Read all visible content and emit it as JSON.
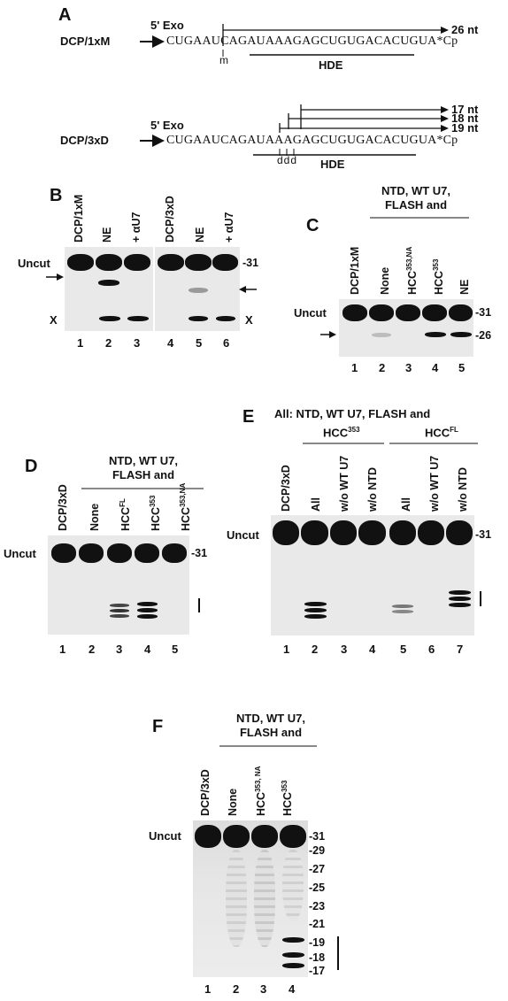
{
  "panels": {
    "A": {
      "label": "A",
      "rows": [
        {
          "name": "DCP/1xM",
          "exo": "5' Exo",
          "sequence": "CUGAAUCAGAUAAAGAGCUGUGACACUGUA*Cp",
          "mark": "m",
          "hde": "HDE",
          "products": [
            "26 nt"
          ]
        },
        {
          "name": "DCP/3xD",
          "exo": "5' Exo",
          "sequence": "CUGAAUCAGAUAAAGAGCUGUGACACUGUA*Cp",
          "mark": "ddd",
          "hde": "HDE",
          "products": [
            "17 nt",
            "18 nt",
            "19 nt"
          ]
        }
      ]
    },
    "B": {
      "label": "B",
      "lanes": [
        "DCP/1xM",
        "NE",
        "+ αU7",
        "DCP/3xD",
        "NE",
        "+ αU7"
      ],
      "lane_numbers": [
        "1",
        "2",
        "3",
        "4",
        "5",
        "6"
      ],
      "uncut": "Uncut",
      "marker": "-31",
      "x_label": "X"
    },
    "C": {
      "label": "C",
      "header": [
        "NTD, WT U7,",
        "FLASH and"
      ],
      "lanes": [
        "DCP/1xM",
        "None",
        "HCC",
        "HCC",
        "NE"
      ],
      "lane_sups": [
        "",
        "",
        "353,NA",
        "353",
        ""
      ],
      "lane_numbers": [
        "1",
        "2",
        "3",
        "4",
        "5"
      ],
      "uncut": "Uncut",
      "markers": [
        "-31",
        "-26"
      ]
    },
    "D": {
      "label": "D",
      "header": [
        "NTD, WT U7,",
        "FLASH and"
      ],
      "lanes": [
        "DCP/3xD",
        "None",
        "HCC",
        "HCC",
        "HCC"
      ],
      "lane_sups": [
        "",
        "",
        "FL",
        "353",
        "353,NA"
      ],
      "lane_numbers": [
        "1",
        "2",
        "3",
        "4",
        "5"
      ],
      "uncut": "Uncut",
      "markers": [
        "-31"
      ]
    },
    "E": {
      "label": "E",
      "header": "All: NTD, WT U7, FLASH and",
      "groups": [
        {
          "name": "HCC",
          "sup": "353"
        },
        {
          "name": "HCC",
          "sup": "FL"
        }
      ],
      "lanes": [
        "DCP/3xD",
        "All",
        "w/o WT U7",
        "w/o NTD",
        "All",
        "w/o WT U7",
        "w/o NTD"
      ],
      "lane_numbers": [
        "1",
        "2",
        "3",
        "4",
        "5",
        "6",
        "7"
      ],
      "uncut": "Uncut",
      "markers": [
        "-31"
      ]
    },
    "F": {
      "label": "F",
      "header": [
        "NTD, WT U7,",
        "FLASH and"
      ],
      "lanes": [
        "DCP/3xD",
        "None",
        "HCC",
        "HCC"
      ],
      "lane_sups": [
        "",
        "",
        "353, NA",
        "353"
      ],
      "lane_numbers": [
        "1",
        "2",
        "3",
        "4"
      ],
      "uncut": "Uncut",
      "markers": [
        "-31",
        "-29",
        "-27",
        "-25",
        "-23",
        "-21",
        "-19",
        "-18",
        "-17"
      ]
    }
  }
}
